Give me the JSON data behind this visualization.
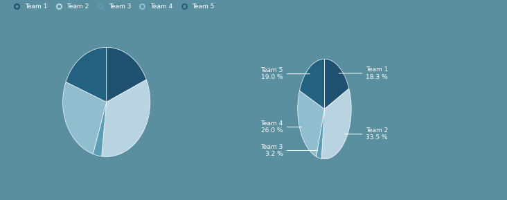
{
  "labels": [
    "Team 1",
    "Team 2",
    "Team 3",
    "Team 4",
    "Team 5"
  ],
  "values": [
    18.3,
    33.5,
    3.2,
    26.0,
    19.0
  ],
  "colors": [
    "#1e5070",
    "#b8d4e2",
    "#5a9db5",
    "#90bece",
    "#246080"
  ],
  "pct_labels": [
    "18.3 %",
    "33.5 %",
    "3.2 %",
    "26.0 %",
    "19.0 %"
  ],
  "background_color": "#5a8fa0",
  "text_color": "#ffffff",
  "legend_marker_colors": [
    "#1e5070",
    "#b8d4e2",
    "#5a9db5",
    "#90bece",
    "#246080"
  ]
}
